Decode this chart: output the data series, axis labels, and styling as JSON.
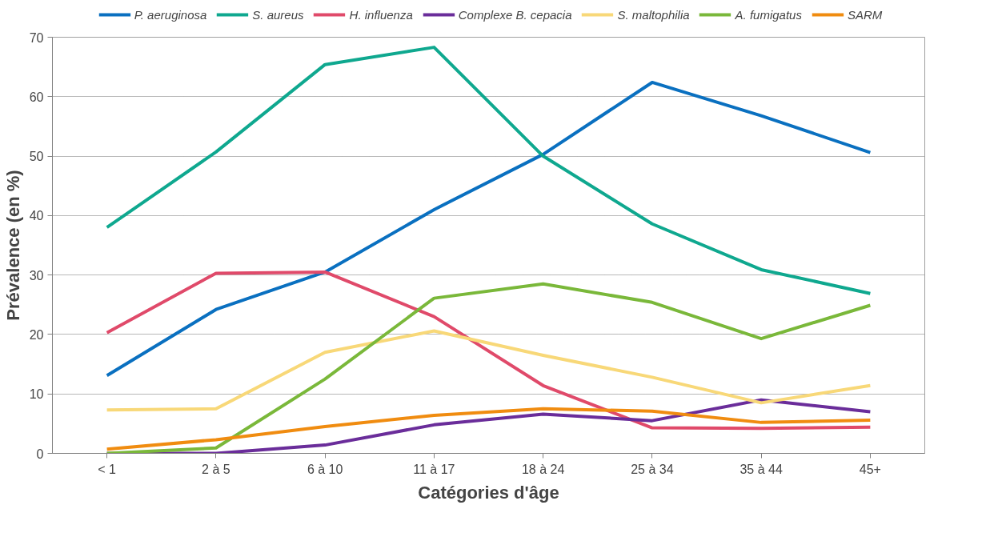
{
  "chart_data": {
    "type": "line",
    "xlabel": "Catégories d'âge",
    "ylabel": "Prévalence (en %)",
    "categories": [
      "< 1",
      "2 à 5",
      "6 à 10",
      "11 à 17",
      "18 à 24",
      "25 à 34",
      "35 à 44",
      "45+"
    ],
    "series": [
      {
        "name": "P. aeruginosa",
        "color": "#0a70c0",
        "values": [
          13.1,
          24.2,
          30.5,
          41,
          50.3,
          62.4,
          56.8,
          50.6
        ]
      },
      {
        "name": "S. aureus",
        "color": "#0fa88f",
        "values": [
          38,
          50.7,
          65.4,
          68.3,
          50,
          38.6,
          30.9,
          26.9
        ]
      },
      {
        "name": "H. influenza",
        "color": "#e04a6a",
        "values": [
          20.3,
          30.3,
          30.5,
          23,
          11.4,
          4.3,
          4.2,
          4.4
        ]
      },
      {
        "name": "Complexe B. cepacia",
        "color": "#6a2d9a",
        "values": [
          0,
          0,
          1.4,
          4.8,
          6.6,
          5.5,
          9,
          7
        ]
      },
      {
        "name": "S. maltophilia",
        "color": "#f8d878",
        "values": [
          7.3,
          7.5,
          17,
          20.6,
          16.5,
          12.8,
          8.5,
          11.4
        ]
      },
      {
        "name": "A. fumigatus",
        "color": "#7ab83a",
        "values": [
          0,
          0.9,
          12.5,
          26.1,
          28.5,
          25.4,
          19.3,
          24.9
        ]
      },
      {
        "name": "SARM",
        "color": "#f08c10",
        "values": [
          0.7,
          2.3,
          4.5,
          6.4,
          7.5,
          7.1,
          5.2,
          5.6
        ]
      }
    ],
    "ylim": [
      0,
      70
    ],
    "yticks": [
      0,
      10,
      20,
      30,
      40,
      50,
      60,
      70
    ],
    "grid": "y",
    "legend": "top",
    "marker": "none",
    "line_style": "solid"
  }
}
